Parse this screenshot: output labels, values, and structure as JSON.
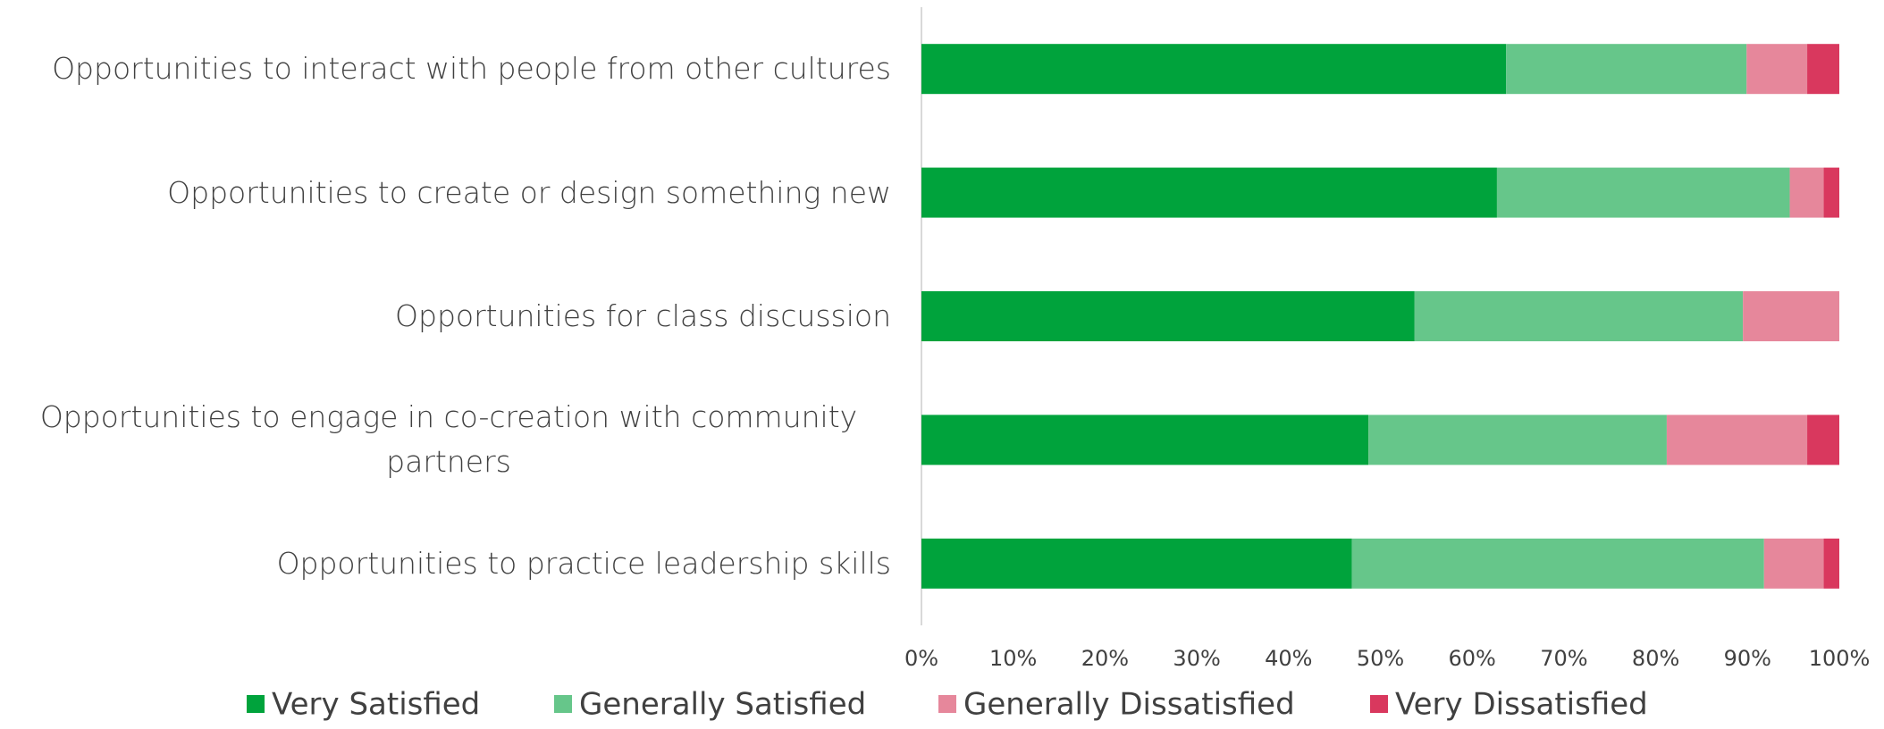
{
  "chart_data": {
    "type": "stacked_barh",
    "categories": [
      "Opportunities to interact with people from other cultures",
      "Opportunities to create or design something new",
      "Opportunities for class discussion",
      "Opportunities to engage in co-creation with community partners",
      "Opportunities to practice leadership skills"
    ],
    "series": [
      {
        "name": "Very Satisfied",
        "color": "#00a33c",
        "values": [
          63.7,
          62.7,
          53.7,
          48.7,
          46.9
        ]
      },
      {
        "name": "Generally Satisfied",
        "color": "#66c68a",
        "values": [
          26.2,
          31.9,
          35.8,
          32.5,
          44.9
        ]
      },
      {
        "name": "Generally Dissatisfied",
        "color": "#e6879b",
        "values": [
          6.6,
          3.7,
          10.5,
          15.3,
          6.5
        ]
      },
      {
        "name": "Very Dissatisfied",
        "color": "#d9385e",
        "values": [
          3.5,
          1.7,
          0,
          3.5,
          1.7
        ]
      }
    ],
    "xlim": [
      0,
      100
    ],
    "xticks": [
      {
        "value": 0,
        "label": "0%"
      },
      {
        "value": 10,
        "label": "10%"
      },
      {
        "value": 20,
        "label": "20%"
      },
      {
        "value": 30,
        "label": "30%"
      },
      {
        "value": 40,
        "label": "40%"
      },
      {
        "value": 50,
        "label": "50%"
      },
      {
        "value": 60,
        "label": "60%"
      },
      {
        "value": 70,
        "label": "70%"
      },
      {
        "value": 80,
        "label": "80%"
      },
      {
        "value": 90,
        "label": "90%"
      },
      {
        "value": 100,
        "label": "100%"
      }
    ],
    "legend": "bottom"
  }
}
